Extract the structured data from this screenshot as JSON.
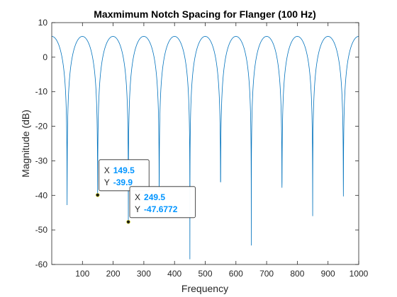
{
  "chart_data": {
    "type": "line",
    "title": "Maxmimum Notch Spacing for Flanger (100 Hz)",
    "xlabel": "Frequency",
    "ylabel": "Magnitude (dB)",
    "xlim": [
      0,
      1000
    ],
    "ylim": [
      -60,
      10
    ],
    "xticks": [
      100,
      200,
      300,
      400,
      500,
      600,
      700,
      800,
      900,
      1000
    ],
    "yticks": [
      10,
      0,
      -10,
      -20,
      -30,
      -40,
      -50,
      -60
    ],
    "grid": false,
    "series": [
      {
        "color": "#0072bd",
        "peak_db": 6.02,
        "notch_spacing": 100,
        "notches": [
          {
            "x": 50,
            "y": -42.8
          },
          {
            "x": 149.5,
            "y": -39.9
          },
          {
            "x": 249.5,
            "y": -47.6772
          },
          {
            "x": 350,
            "y": -38.5
          },
          {
            "x": 450,
            "y": -58.5
          },
          {
            "x": 550,
            "y": -36.2
          },
          {
            "x": 650,
            "y": -54.5
          },
          {
            "x": 750,
            "y": -37.8
          },
          {
            "x": 850,
            "y": -46.0
          },
          {
            "x": 950,
            "y": -40.3
          }
        ]
      }
    ],
    "datatips": [
      {
        "x_label": "X",
        "x_value": "149.5",
        "y_label": "Y",
        "y_value": "-39.9",
        "x": 149.5,
        "y": -39.9
      },
      {
        "x_label": "X",
        "x_value": "249.5",
        "y_label": "Y",
        "y_value": "-47.6772",
        "x": 249.5,
        "y": -47.6772
      }
    ]
  },
  "colors": {
    "axis": "#262626",
    "line": "#0072bd",
    "datatip_value": "#0094ff",
    "datatip_border": "#262626"
  }
}
